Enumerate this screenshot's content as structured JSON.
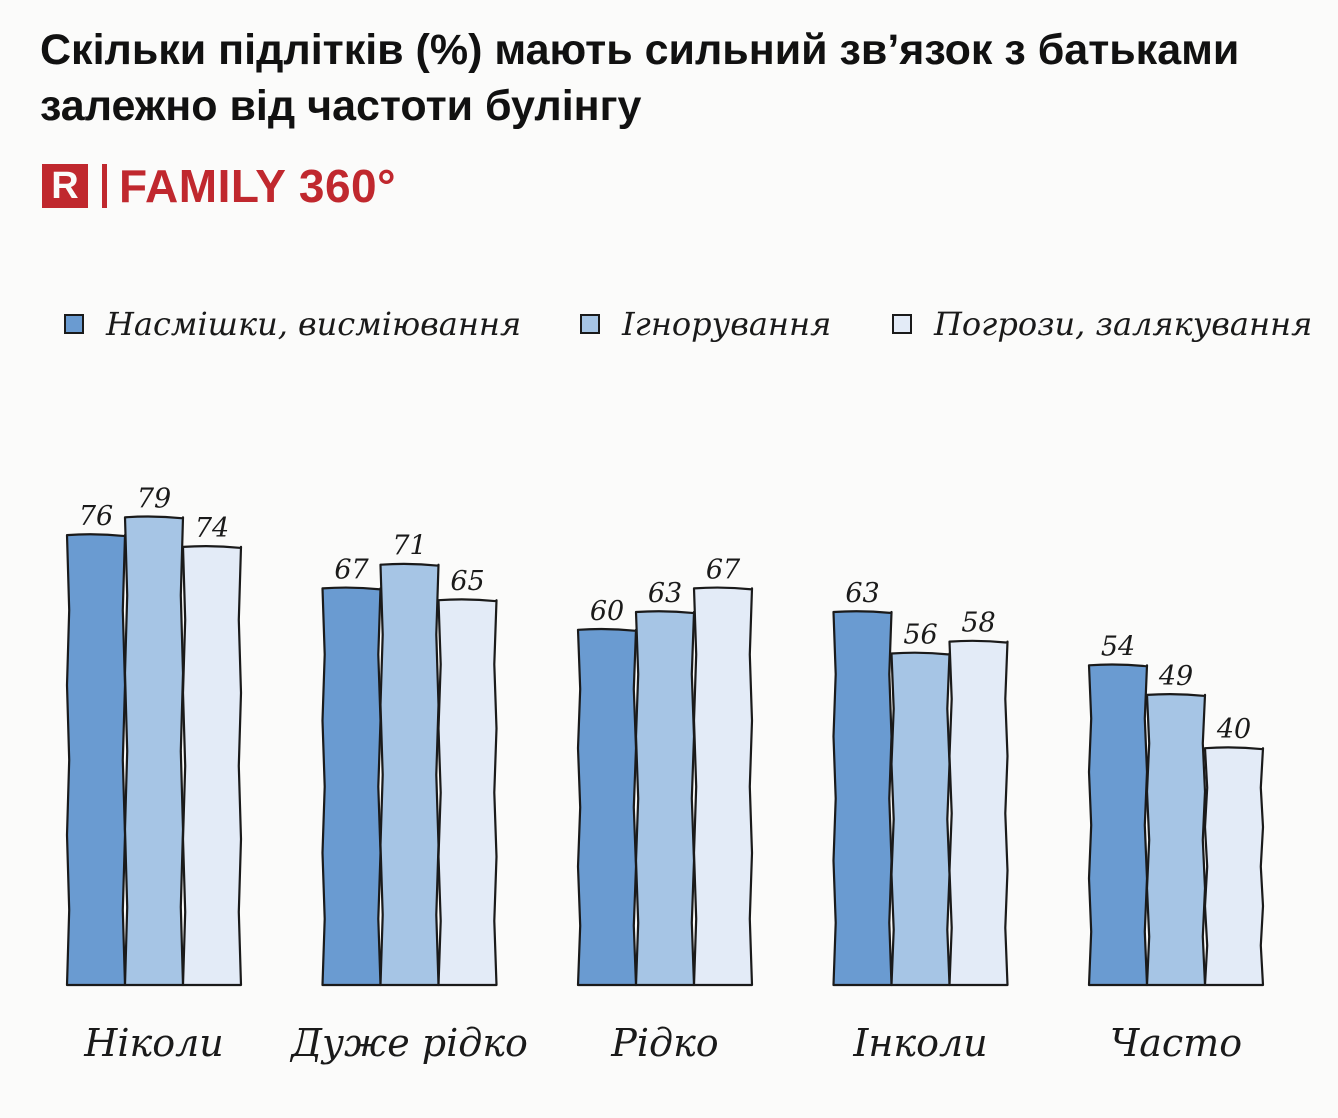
{
  "title": "Скільки підлітків (%) мають сильний зв’язок з батьками залежно від частоти булінгу",
  "brand": {
    "logo_letter": "R",
    "name": "FAMILY 360°"
  },
  "chart_data": {
    "type": "bar",
    "categories": [
      "Ніколи",
      "Дуже рідко",
      "Рідко",
      "Інколи",
      "Часто"
    ],
    "series": [
      {
        "name": "Насмішки, висміювання",
        "values": [
          76,
          67,
          60,
          63,
          54
        ],
        "color": "#6a9bd1"
      },
      {
        "name": "Ігнорування",
        "values": [
          79,
          71,
          63,
          56,
          49
        ],
        "color": "#a6c5e5"
      },
      {
        "name": "Погрози, залякування",
        "values": [
          74,
          65,
          67,
          58,
          40
        ],
        "color": "#e3ebf7"
      }
    ],
    "ylim": [
      0,
      80
    ],
    "grid": false,
    "legend": "top",
    "data_labels": true
  }
}
